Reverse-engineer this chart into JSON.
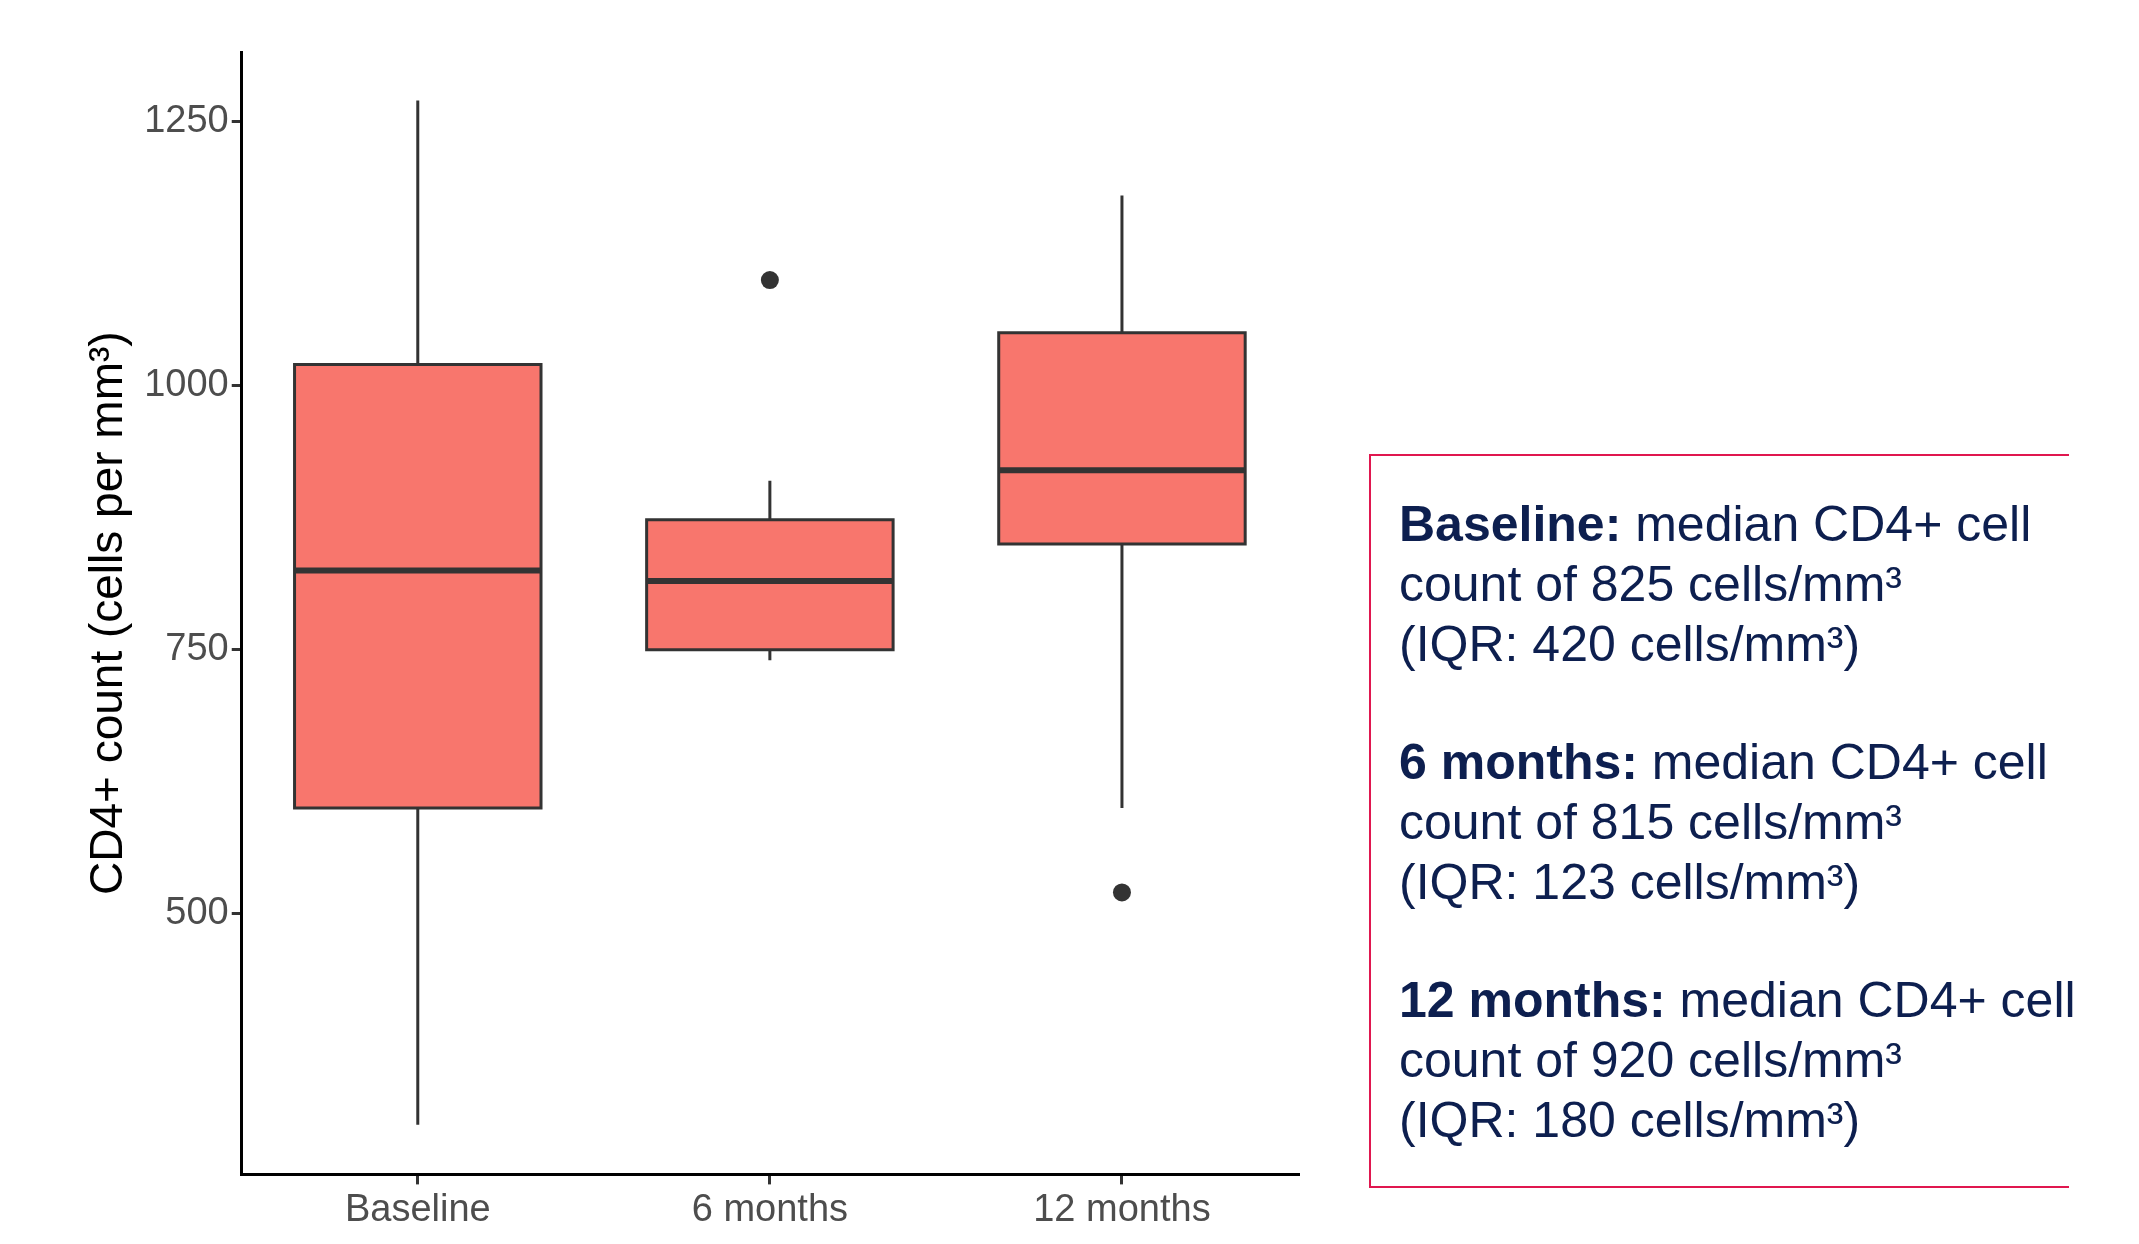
{
  "chart_data": {
    "type": "box",
    "ylabel": "CD4+ count (cells per mm³)",
    "categories": [
      "Baseline",
      "6 months",
      "12 months"
    ],
    "boxes": [
      {
        "low": 300,
        "q1": 600,
        "median": 825,
        "q3": 1020,
        "high": 1270
      },
      {
        "low": 740,
        "q1": 750,
        "median": 815,
        "q3": 873,
        "high": 910,
        "outliers": [
          1100
        ]
      },
      {
        "low": 600,
        "q1": 850,
        "median": 920,
        "q3": 1050,
        "high": 1180,
        "outliers": [
          520
        ]
      }
    ],
    "color": "#f8766d",
    "ylim": [
      253,
      1316
    ],
    "yticks": [
      500,
      750,
      1000,
      1250
    ],
    "grid": false,
    "legend": false,
    "annotations": [
      "Baseline: median CD4+ cell count of 825 cells/mm³ (IQR: 420 cells/mm³)",
      "6 months: median CD4+ cell count of 815 cells/mm³ (IQR: 123 cells/mm³)",
      "12 months: median CD4+ cell count of 920 cells/mm³ (IQR: 180 cells/mm³)"
    ]
  }
}
